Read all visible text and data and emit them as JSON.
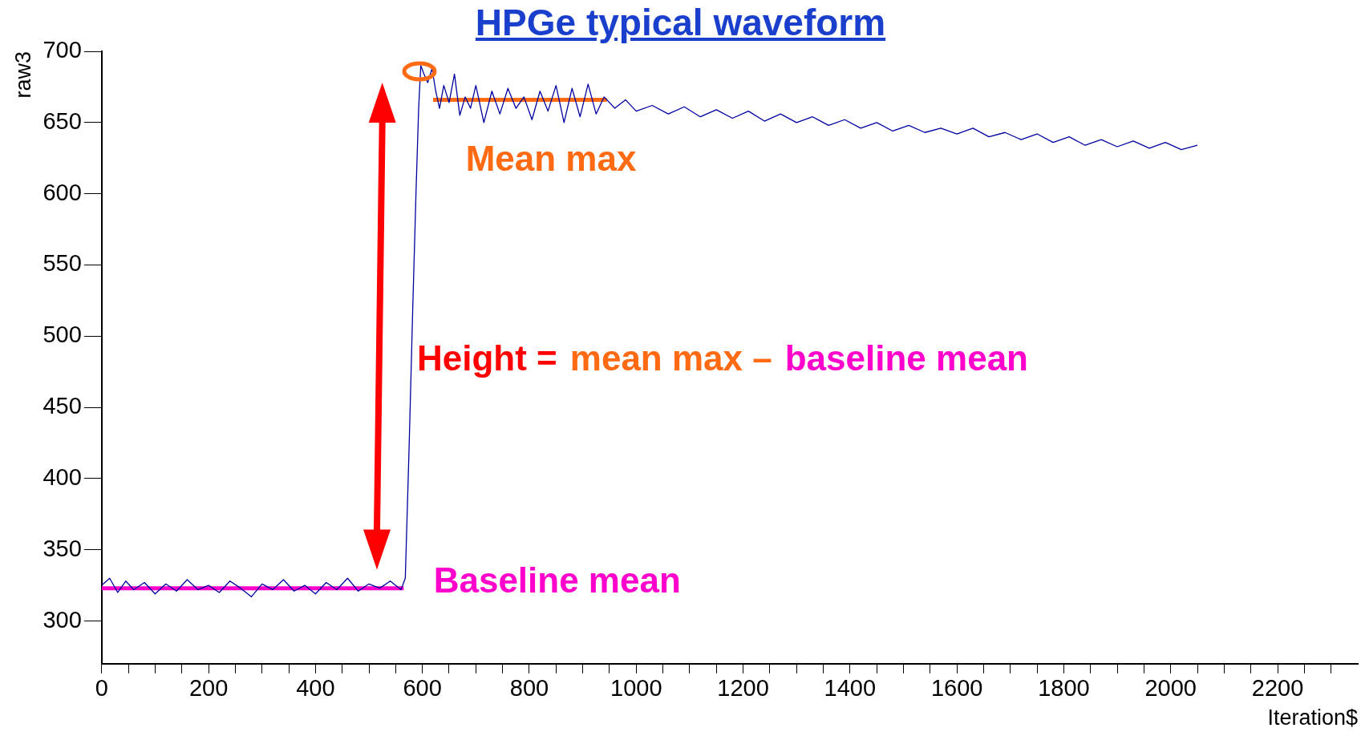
{
  "chart_data": {
    "type": "line",
    "title": "HPGe typical waveform",
    "xlabel": "Iteration$",
    "ylabel": "raw3",
    "xlim": [
      0,
      2350
    ],
    "xticks": [
      0,
      {
        "value": 50,
        "label": null
      },
      {
        "value": 100,
        "label": null
      },
      {
        "value": 150,
        "label": null
      },
      200,
      {
        "value": 250,
        "label": null
      },
      {
        "value": 300,
        "label": null
      },
      {
        "value": 350,
        "label": null
      },
      400,
      {
        "value": 450,
        "label": null
      },
      {
        "value": 500,
        "label": null
      },
      {
        "value": 550,
        "label": null
      },
      600,
      {
        "value": 650,
        "label": null
      },
      {
        "value": 700,
        "label": null
      },
      {
        "value": 750,
        "label": null
      },
      800,
      {
        "value": 850,
        "label": null
      },
      {
        "value": 900,
        "label": null
      },
      {
        "value": 950,
        "label": null
      },
      1000,
      {
        "value": 1050,
        "label": null
      },
      {
        "value": 1100,
        "label": null
      },
      {
        "value": 1150,
        "label": null
      },
      1200,
      {
        "value": 1250,
        "label": null
      },
      {
        "value": 1300,
        "label": null
      },
      {
        "value": 1350,
        "label": null
      },
      1400,
      {
        "value": 1450,
        "label": null
      },
      {
        "value": 1500,
        "label": null
      },
      {
        "value": 1550,
        "label": null
      },
      1600,
      {
        "value": 1650,
        "label": null
      },
      {
        "value": 1700,
        "label": null
      },
      {
        "value": 1750,
        "label": null
      },
      1800,
      {
        "value": 1850,
        "label": null
      },
      {
        "value": 1900,
        "label": null
      },
      {
        "value": 1950,
        "label": null
      },
      2000,
      {
        "value": 2050,
        "label": null
      },
      {
        "value": 2100,
        "label": null
      },
      {
        "value": 2150,
        "label": null
      },
      2200,
      {
        "value": 2250,
        "label": null
      },
      {
        "value": 2300,
        "label": null
      }
    ],
    "ylim": [
      270,
      700
    ],
    "yticks": [
      300,
      350,
      400,
      450,
      500,
      550,
      600,
      650,
      700
    ],
    "grid": false,
    "legend": false,
    "marker": "none",
    "line_style": "solid",
    "series": [
      {
        "color": "#0000a0",
        "x": [
          0,
          15,
          30,
          45,
          60,
          80,
          100,
          120,
          140,
          160,
          180,
          200,
          220,
          240,
          260,
          280,
          300,
          320,
          340,
          360,
          380,
          400,
          420,
          440,
          460,
          480,
          500,
          520,
          540,
          560,
          568,
          575,
          582,
          588,
          593,
          597,
          603,
          610,
          618,
          625,
          632,
          640,
          650,
          660,
          670,
          680,
          690,
          700,
          715,
          730,
          745,
          760,
          775,
          790,
          805,
          820,
          835,
          850,
          865,
          880,
          895,
          910,
          925,
          940,
          960,
          980,
          1000,
          1030,
          1060,
          1090,
          1120,
          1150,
          1180,
          1210,
          1240,
          1270,
          1300,
          1330,
          1360,
          1390,
          1420,
          1450,
          1480,
          1510,
          1540,
          1570,
          1600,
          1630,
          1660,
          1690,
          1720,
          1750,
          1780,
          1810,
          1840,
          1870,
          1900,
          1930,
          1960,
          1990,
          2020,
          2050
        ],
        "values": [
          325,
          330,
          320,
          328,
          322,
          327,
          319,
          326,
          321,
          329,
          322,
          325,
          320,
          328,
          323,
          317,
          326,
          322,
          329,
          321,
          325,
          319,
          327,
          322,
          330,
          321,
          326,
          323,
          328,
          322,
          330,
          420,
          520,
          600,
          660,
          690,
          684,
          678,
          688,
          672,
          660,
          676,
          664,
          684,
          655,
          668,
          660,
          676,
          650,
          672,
          656,
          674,
          660,
          668,
          652,
          672,
          658,
          676,
          650,
          674,
          654,
          677,
          656,
          668,
          660,
          666,
          658,
          662,
          656,
          661,
          654,
          659,
          653,
          658,
          651,
          656,
          650,
          654,
          648,
          652,
          646,
          650,
          644,
          648,
          643,
          646,
          642,
          646,
          640,
          643,
          638,
          642,
          636,
          640,
          634,
          638,
          633,
          637,
          632,
          636,
          631,
          634
        ]
      },
      {
        "color": "#ff6a13",
        "x": [
          620,
          945
        ],
        "values": [
          666,
          666
        ]
      },
      {
        "color": "#ff00cc",
        "x": [
          0,
          565
        ],
        "values": [
          323,
          323
        ]
      }
    ],
    "annotations": [
      "Mean max",
      "Baseline mean",
      "Height =",
      "mean max –",
      "baseline mean"
    ]
  }
}
